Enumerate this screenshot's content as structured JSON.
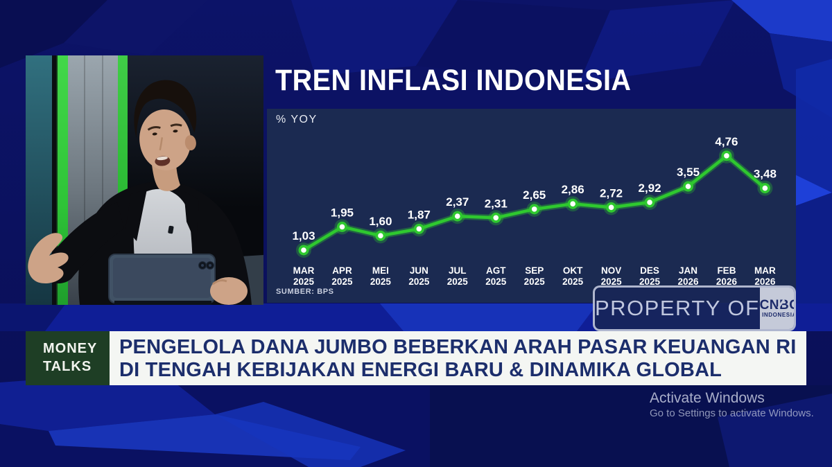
{
  "colors": {
    "accent_green": "#2fc82f",
    "panel_navy": "#1b2a51",
    "background_blue": "#0b1160",
    "headline_navy": "#1c2e6c",
    "bug_green": "#1e3e25",
    "banner_white": "#f4f6f3"
  },
  "chart_data": {
    "type": "line",
    "title": "TREN INFLASI INDONESIA",
    "ylabel": "% YOY",
    "source": "SUMBER: BPS",
    "categories": [
      "MAR 2025",
      "APR 2025",
      "MEI 2025",
      "JUN 2025",
      "JUL 2025",
      "AGT 2025",
      "SEP 2025",
      "OKT 2025",
      "NOV 2025",
      "DES 2025",
      "JAN 2026",
      "FEB 2026",
      "MAR 2026"
    ],
    "values": [
      1.03,
      1.95,
      1.6,
      1.87,
      2.37,
      2.31,
      2.65,
      2.86,
      2.72,
      2.92,
      3.55,
      4.76,
      3.48
    ],
    "point_labels": [
      "1,03",
      "1,95",
      "1,60",
      "1,87",
      "2,37",
      "2,31",
      "2,65",
      "2,86",
      "2,72",
      "2,92",
      "3,55",
      "4,76",
      "3,48"
    ],
    "ylim": [
      0.5,
      5.2
    ],
    "grid": false,
    "legend": false,
    "line_color": "#2fc82f",
    "marker_center": "#ffffff",
    "label_color": "#ffffff"
  },
  "watermark": {
    "label": "PROPERTY OF",
    "logo_top": "CNBC",
    "logo_bottom": "INDONESIA"
  },
  "lower_third": {
    "bug": [
      "MONEY",
      "TALKS"
    ],
    "headline": [
      "PENGELOLA DANA JUMBO BEBERKAN ARAH PASAR KEUANGAN RI",
      "DI TENGAH KEBIJAKAN ENERGI BARU & DINAMIKA GLOBAL"
    ]
  },
  "os_overlay": {
    "title": "Activate Windows",
    "subtitle": "Go to Settings to activate Windows."
  }
}
